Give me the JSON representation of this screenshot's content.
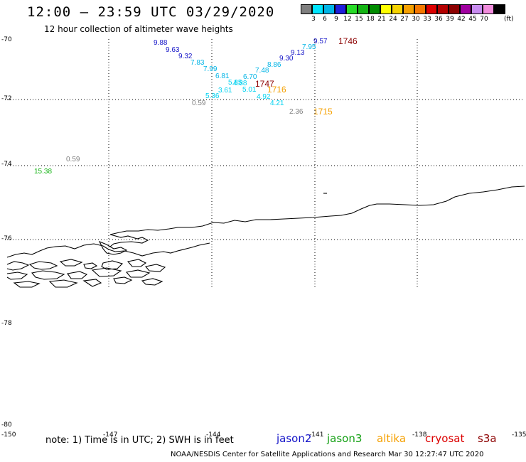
{
  "header": {
    "title": "12:00 – 23:59 UTC 03/29/2020",
    "subtitle": "12 hour collection of altimeter wave heights"
  },
  "legend": {
    "units": "(ft)",
    "values": [
      "3",
      "6",
      "9",
      "12",
      "15",
      "18",
      "21",
      "24",
      "27",
      "30",
      "33",
      "36",
      "39",
      "42",
      "45",
      "70"
    ],
    "colors": [
      "#7f7f7f",
      "#00e5ff",
      "#00b4e6",
      "#1e1edc",
      "#28dc28",
      "#14b414",
      "#008c00",
      "#ffff00",
      "#f5d200",
      "#f5a000",
      "#f57800",
      "#dc0000",
      "#b40000",
      "#8c0000",
      "#a000a0",
      "#c88cf0",
      "#f08cdc",
      "#000000"
    ]
  },
  "axes": {
    "lat_labels": [
      "-70",
      "-72",
      "-74",
      "-76",
      "-78",
      "-80"
    ],
    "lon_labels": [
      "-150",
      "-147",
      "-144",
      "-141",
      "-138",
      "-135"
    ]
  },
  "map_data": {
    "points": [
      {
        "text": "9.88",
        "color": "#1414c8"
      },
      {
        "text": "9.63",
        "color": "#1414c8"
      },
      {
        "text": "9.32",
        "color": "#1414c8"
      },
      {
        "text": "7.83",
        "color": "#00b4e6"
      },
      {
        "text": "7.99",
        "color": "#00b4e6"
      },
      {
        "text": "6.81",
        "color": "#00b4e6"
      },
      {
        "text": "5.85",
        "color": "#00d2f0"
      },
      {
        "text": "4.88",
        "color": "#00d2f0"
      },
      {
        "text": "3.61",
        "color": "#00d2f0"
      },
      {
        "text": "5.36",
        "color": "#00d2f0"
      },
      {
        "text": "5.01",
        "color": "#00d2f0"
      },
      {
        "text": "6.70",
        "color": "#00b4e6"
      },
      {
        "text": "7.48",
        "color": "#00b4e6"
      },
      {
        "text": "8.86",
        "color": "#00b4e6"
      },
      {
        "text": "9.30",
        "color": "#1414c8"
      },
      {
        "text": "9.13",
        "color": "#1414c8"
      },
      {
        "text": "7.95",
        "color": "#00b4e6"
      },
      {
        "text": "9.57",
        "color": "#1414c8"
      },
      {
        "text": "4.92",
        "color": "#00d2f0"
      },
      {
        "text": "4.21",
        "color": "#00d2f0"
      },
      {
        "text": "2.36",
        "color": "#7f7f7f"
      },
      {
        "text": "0.59",
        "color": "#7f7f7f"
      },
      {
        "text": "0.59",
        "color": "#7f7f7f"
      },
      {
        "text": "15.38",
        "color": "#14b414"
      }
    ],
    "times": [
      {
        "text": "1746",
        "color": "#8c0000"
      },
      {
        "text": "1747",
        "color": "#8c0000"
      },
      {
        "text": "1716",
        "color": "#f5a000"
      },
      {
        "text": "1715",
        "color": "#f5a000"
      }
    ]
  },
  "footer": {
    "note": "note: 1) Time is in UTC; 2) SWH is in feet",
    "missions": [
      {
        "name": "jason2",
        "color": "#1414c8"
      },
      {
        "name": "jason3",
        "color": "#14a014"
      },
      {
        "name": "altika",
        "color": "#f5a000"
      },
      {
        "name": "cryosat",
        "color": "#dc0000"
      },
      {
        "name": "s3a",
        "color": "#8c0000"
      }
    ],
    "credit": "NOAA/NESDIS Center for Satellite Applications and Research     Mar 30 12:27:47 UTC 2020"
  }
}
